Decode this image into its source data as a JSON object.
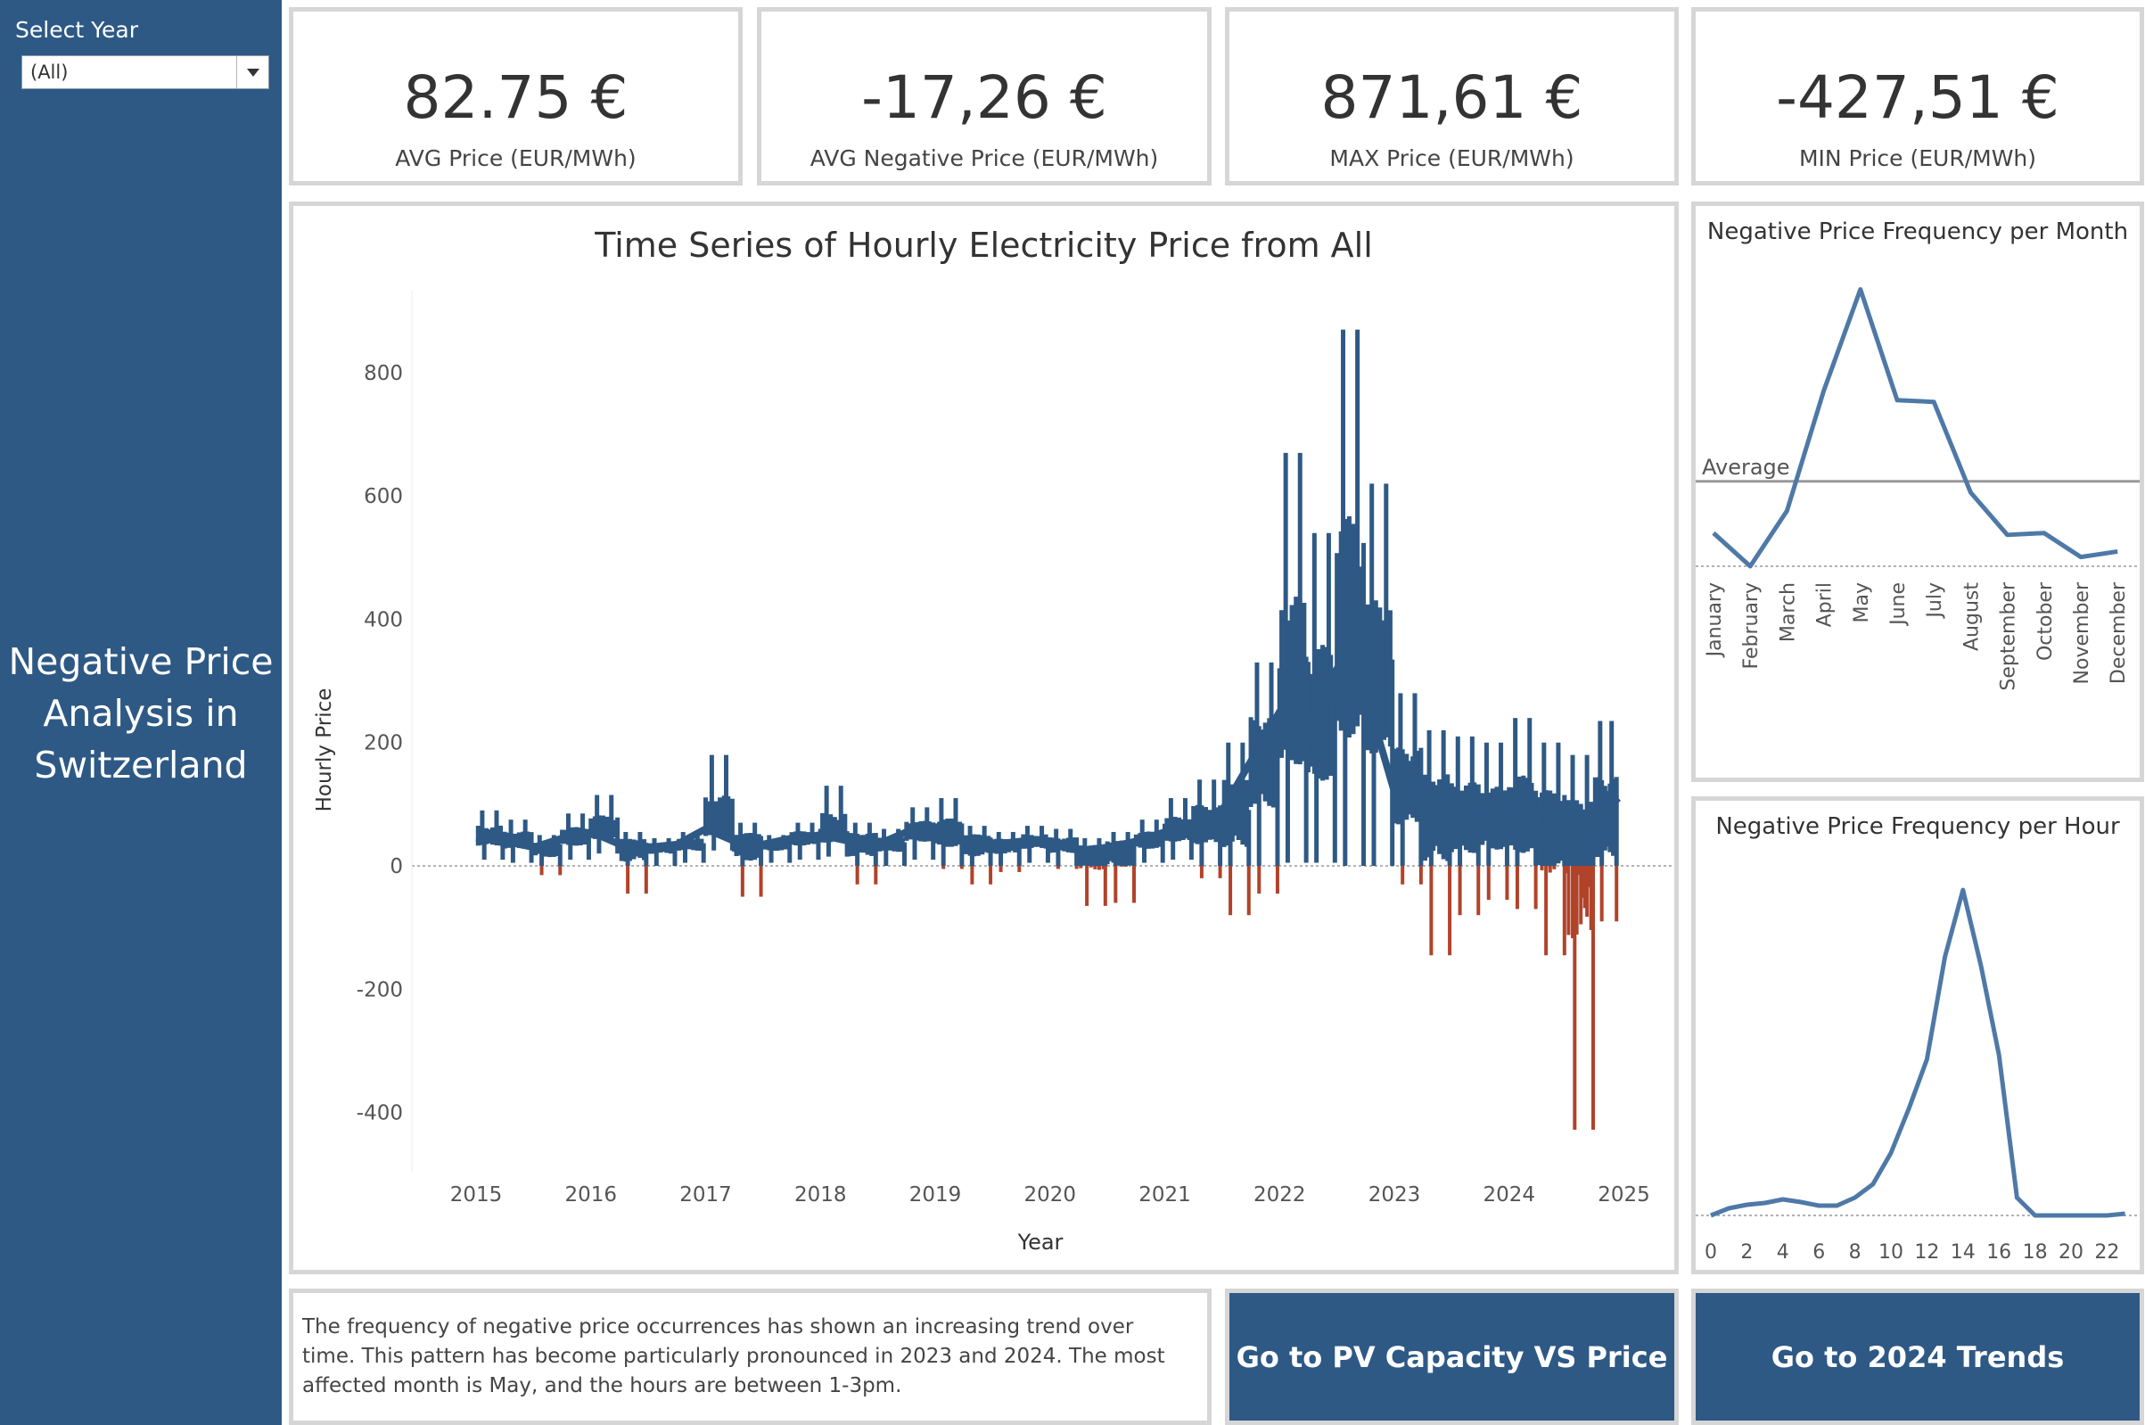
{
  "sidebar": {
    "select_label": "Select Year",
    "select_value": "(All)",
    "title_line1": "Negative Price",
    "title_line2": "Analysis in",
    "title_line3": "Switzerland"
  },
  "kpis": [
    {
      "value": "82.75 €",
      "label": "AVG Price (EUR/MWh)"
    },
    {
      "value": "-17,26 €",
      "label": "AVG Negative Price (EUR/MWh)"
    },
    {
      "value": "871,61 €",
      "label": "MAX Price (EUR/MWh)"
    },
    {
      "value": "-427,51 €",
      "label": "MIN Price (EUR/MWh)"
    }
  ],
  "main_chart": {
    "title": "Time Series of Hourly Electricity Price from All",
    "xlabel": "Year",
    "ylabel": "Hourly Price"
  },
  "month_chart": {
    "title": "Negative Price Frequency per Month",
    "ref_label": "Average"
  },
  "hour_chart": {
    "title": "Negative Price Frequency per Hour"
  },
  "note": "The frequency of negative price occurrences has shown an increasing trend over time. This pattern has become particularly pronounced in 2023 and 2024. The most affected month is May, and the hours are between 1-3pm.",
  "buttons": {
    "pv": "Go to PV Capacity VS Price",
    "trends": "Go to 2024 Trends"
  },
  "colors": {
    "sidebar": "#2e5985",
    "series": "#2e5985",
    "negative": "#b0432a",
    "line": "#4e79a7"
  },
  "chart_data": [
    {
      "type": "line",
      "title": "Time Series of Hourly Electricity Price from All",
      "xlabel": "Year",
      "ylabel": "Hourly Price",
      "xlim": [
        2015,
        2025
      ],
      "ylim": [
        -500,
        900
      ],
      "x_ticks": [
        "2015",
        "2016",
        "2017",
        "2018",
        "2019",
        "2020",
        "2021",
        "2022",
        "2023",
        "2024",
        "2025"
      ],
      "y_ticks": [
        "800",
        "600",
        "400",
        "200",
        "0",
        "-200",
        "-400"
      ],
      "series": [
        {
          "x": [
            2015.0,
            2015.25,
            2015.5,
            2015.75,
            2016.0,
            2016.25,
            2016.5,
            2016.75,
            2017.0,
            2017.25,
            2017.5,
            2017.75,
            2018.0,
            2018.25,
            2018.5,
            2018.75,
            2019.0,
            2019.25,
            2019.5,
            2019.75,
            2020.0,
            2020.25,
            2020.5,
            2020.75,
            2021.0,
            2021.25,
            2021.5,
            2021.75,
            2022.0,
            2022.25,
            2022.5,
            2022.75,
            2023.0,
            2023.25,
            2023.5,
            2023.75,
            2024.0,
            2024.25,
            2024.5,
            2024.75,
            2024.95
          ],
          "y": [
            45,
            40,
            30,
            45,
            55,
            35,
            30,
            35,
            60,
            40,
            35,
            45,
            50,
            40,
            35,
            55,
            50,
            40,
            35,
            40,
            35,
            25,
            30,
            40,
            55,
            65,
            90,
            170,
            250,
            210,
            320,
            280,
            120,
            90,
            75,
            70,
            70,
            60,
            50,
            70,
            110
          ],
          "max": [
            90,
            75,
            50,
            85,
            115,
            55,
            45,
            55,
            180,
            70,
            50,
            70,
            130,
            70,
            60,
            95,
            110,
            65,
            55,
            65,
            60,
            45,
            55,
            75,
            110,
            140,
            200,
            330,
            670,
            540,
            870,
            620,
            280,
            220,
            210,
            200,
            240,
            200,
            180,
            235,
            200
          ],
          "min": [
            10,
            5,
            -15,
            10,
            20,
            -45,
            0,
            5,
            25,
            -50,
            5,
            10,
            15,
            -30,
            0,
            10,
            -5,
            -30,
            -10,
            5,
            -5,
            -65,
            -60,
            5,
            10,
            -20,
            -80,
            -45,
            5,
            5,
            0,
            0,
            -30,
            -145,
            -80,
            -55,
            -70,
            -145,
            -428,
            -90,
            30
          ]
        }
      ]
    },
    {
      "type": "line",
      "title": "Negative Price Frequency per Month",
      "categories": [
        "January",
        "February",
        "March",
        "April",
        "May",
        "June",
        "July",
        "August",
        "September",
        "October",
        "November",
        "December"
      ],
      "values": [
        18,
        0,
        30,
        95,
        150,
        90,
        89,
        40,
        17,
        18,
        5,
        8
      ],
      "average": 46
    },
    {
      "type": "line",
      "title": "Negative Price Frequency per Hour",
      "categories": [
        "0",
        "1",
        "2",
        "3",
        "4",
        "5",
        "6",
        "7",
        "8",
        "9",
        "10",
        "11",
        "12",
        "13",
        "14",
        "15",
        "16",
        "17",
        "18",
        "19",
        "20",
        "21",
        "22",
        "23"
      ],
      "x_ticks": [
        "0",
        "2",
        "4",
        "6",
        "8",
        "10",
        "12",
        "14",
        "16",
        "18",
        "20",
        "22"
      ],
      "values": [
        0,
        8,
        12,
        14,
        18,
        15,
        11,
        11,
        20,
        35,
        70,
        120,
        175,
        290,
        365,
        280,
        180,
        20,
        0,
        0,
        0,
        0,
        0,
        2
      ]
    }
  ]
}
